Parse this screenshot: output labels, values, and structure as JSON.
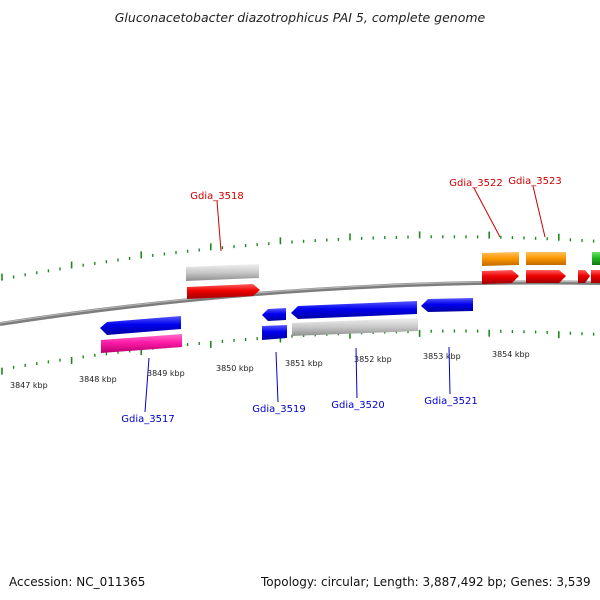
{
  "title": "Gluconacetobacter diazotrophicus PAI 5, complete genome",
  "footer": {
    "accession_label": "Accession:",
    "accession": "NC_011365",
    "topology_label": "Topology:",
    "topology": "circular",
    "length_label": "Length:",
    "length": "3,887,492 bp",
    "genes_label": "Genes:",
    "genes": "3,539"
  },
  "colors": {
    "backbone": "#8a8a8a",
    "ticks": "#1e8a1e",
    "forward_label": "#cc0000",
    "reverse_label": "#0000cc"
  },
  "scale": {
    "unit": "kbp",
    "ticks": [
      {
        "label": "3847 kbp"
      },
      {
        "label": "3848 kbp"
      },
      {
        "label": "3849 kbp"
      },
      {
        "label": "3850 kbp"
      },
      {
        "label": "3851 kbp"
      },
      {
        "label": "3852 kbp"
      },
      {
        "label": "3853 kbp"
      },
      {
        "label": "3854 kbp"
      }
    ]
  },
  "gene_labels": {
    "forward": [
      "Gdia_3518",
      "Gdia_3522",
      "Gdia_3523"
    ],
    "reverse": [
      "Gdia_3517",
      "Gdia_3519",
      "Gdia_3520",
      "Gdia_3521"
    ]
  }
}
